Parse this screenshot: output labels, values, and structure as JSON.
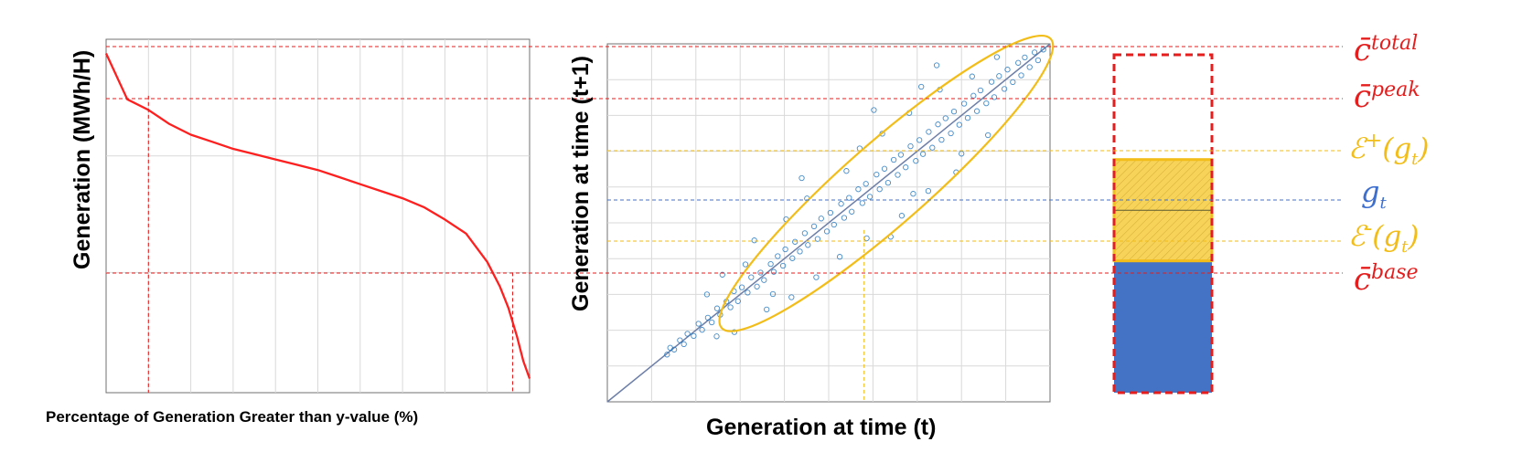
{
  "colors": {
    "curve": "#ff1f1f",
    "threshold": "#e51d1d",
    "generation": "#4472c4",
    "band": "#f2bd18",
    "scatter": "#1f74bd",
    "grid": "#d9d9d9",
    "axis": "#707070",
    "legend_generation": "#3e6fcf"
  },
  "panel_left": {
    "xlabel": "Percentage of Generation Greater than y-value (%)",
    "ylabel": "Generation (MWh/H)"
  },
  "panel_middle": {
    "xlabel": "Generation at time (t)",
    "ylabel": "Generation at time (t+1)"
  },
  "panel_right": {
    "labels": {
      "c_total": {
        "base": "c̄",
        "sup": "total"
      },
      "c_peak": {
        "base": "c̄",
        "sup": "peak"
      },
      "eps_plus": {
        "base": "ℰ",
        "sup": "+",
        "arg": "(g",
        "sub": "t",
        "close": ")"
      },
      "g_t": {
        "base": "g",
        "sub": "t"
      },
      "eps_minus": {
        "base": "ℰ",
        "sup": "-",
        "arg": "(g",
        "sub": "t",
        "close": ")"
      },
      "c_base": {
        "base": "c̄",
        "sup": "base"
      }
    }
  },
  "chart_data": [
    {
      "type": "line",
      "series": [
        {
          "x": [
            0,
            5,
            10,
            15,
            20,
            25,
            30,
            35,
            40,
            45,
            50,
            55,
            60,
            65,
            70,
            75,
            80,
            85,
            90,
            93,
            95,
            97,
            98.5,
            100
          ],
          "values": [
            96,
            83,
            80,
            76,
            73,
            71,
            69,
            67.5,
            66,
            64.5,
            63,
            61,
            59,
            57,
            55,
            52.5,
            49,
            45,
            37,
            30,
            24,
            16,
            9,
            4
          ]
        }
      ],
      "reference_lines": {
        "horizontal": [
          100,
          84,
          34
        ],
        "vertical": [
          10,
          96
        ]
      },
      "grid": true
    },
    {
      "type": "scatter",
      "points": [
        [
          13.5,
          13.2
        ],
        [
          14.2,
          15.1
        ],
        [
          15.1,
          14.6
        ],
        [
          16.4,
          17.2
        ],
        [
          17.3,
          16.1
        ],
        [
          18.1,
          19.0
        ],
        [
          19.5,
          18.4
        ],
        [
          20.6,
          21.8
        ],
        [
          21.4,
          20.1
        ],
        [
          22.7,
          23.5
        ],
        [
          23.6,
          22.2
        ],
        [
          24.8,
          26.1
        ],
        [
          25.5,
          24.3
        ],
        [
          26.9,
          28.0
        ],
        [
          27.8,
          26.4
        ],
        [
          28.6,
          30.9
        ],
        [
          29.5,
          28.1
        ],
        [
          30.4,
          32.0
        ],
        [
          31.7,
          30.5
        ],
        [
          32.5,
          34.8
        ],
        [
          33.8,
          32.2
        ],
        [
          34.6,
          36.1
        ],
        [
          35.4,
          34.0
        ],
        [
          36.9,
          38.5
        ],
        [
          37.6,
          36.3
        ],
        [
          38.5,
          40.7
        ],
        [
          39.7,
          38.0
        ],
        [
          40.2,
          42.6
        ],
        [
          41.8,
          40.1
        ],
        [
          42.4,
          44.7
        ],
        [
          43.5,
          42.0
        ],
        [
          44.6,
          47.1
        ],
        [
          45.3,
          43.8
        ],
        [
          46.7,
          49.0
        ],
        [
          47.5,
          45.5
        ],
        [
          48.3,
          51.2
        ],
        [
          49.6,
          47.6
        ],
        [
          50.4,
          52.8
        ],
        [
          51.2,
          49.5
        ],
        [
          52.8,
          55.3
        ],
        [
          53.5,
          51.4
        ],
        [
          54.6,
          57.0
        ],
        [
          55.2,
          53.1
        ],
        [
          56.7,
          59.4
        ],
        [
          57.6,
          55.5
        ],
        [
          58.4,
          60.9
        ],
        [
          59.3,
          57.3
        ],
        [
          60.8,
          63.5
        ],
        [
          61.5,
          59.4
        ],
        [
          62.6,
          65.1
        ],
        [
          63.4,
          61.2
        ],
        [
          64.7,
          67.6
        ],
        [
          65.6,
          63.4
        ],
        [
          66.3,
          69.0
        ],
        [
          67.4,
          65.5
        ],
        [
          68.5,
          71.4
        ],
        [
          69.7,
          67.3
        ],
        [
          70.5,
          73.1
        ],
        [
          71.3,
          69.2
        ],
        [
          72.6,
          75.4
        ],
        [
          73.4,
          71.0
        ],
        [
          74.7,
          77.5
        ],
        [
          75.5,
          73.2
        ],
        [
          76.4,
          79.2
        ],
        [
          77.6,
          75.0
        ],
        [
          78.3,
          81.1
        ],
        [
          79.5,
          77.4
        ],
        [
          80.6,
          83.3
        ],
        [
          81.4,
          79.3
        ],
        [
          82.7,
          85.5
        ],
        [
          83.5,
          81.2
        ],
        [
          84.3,
          87.0
        ],
        [
          85.6,
          83.4
        ],
        [
          86.8,
          89.4
        ],
        [
          87.4,
          85.1
        ],
        [
          88.5,
          91.0
        ],
        [
          89.7,
          87.4
        ],
        [
          90.4,
          92.8
        ],
        [
          91.6,
          89.3
        ],
        [
          92.8,
          94.7
        ],
        [
          93.5,
          91.2
        ],
        [
          94.3,
          96.2
        ],
        [
          95.4,
          93.5
        ],
        [
          96.5,
          97.6
        ],
        [
          97.3,
          95.4
        ],
        [
          98.5,
          98.4
        ],
        [
          22.5,
          30.0
        ],
        [
          31.2,
          38.4
        ],
        [
          28.7,
          19.5
        ],
        [
          36.0,
          25.8
        ],
        [
          40.4,
          51.0
        ],
        [
          45.1,
          56.8
        ],
        [
          47.2,
          34.8
        ],
        [
          54.0,
          64.5
        ],
        [
          58.6,
          45.7
        ],
        [
          62.1,
          74.9
        ],
        [
          66.5,
          52.0
        ],
        [
          68.2,
          80.7
        ],
        [
          72.5,
          58.9
        ],
        [
          75.1,
          87.2
        ],
        [
          78.8,
          64.1
        ],
        [
          82.4,
          90.9
        ],
        [
          41.6,
          29.2
        ],
        [
          52.5,
          40.5
        ],
        [
          60.2,
          81.5
        ],
        [
          69.1,
          58.1
        ],
        [
          74.4,
          94.0
        ],
        [
          80.0,
          69.3
        ],
        [
          88.0,
          96.3
        ],
        [
          33.2,
          45.1
        ],
        [
          26.0,
          35.5
        ],
        [
          43.9,
          62.5
        ],
        [
          57.0,
          70.8
        ],
        [
          64.0,
          46.1
        ],
        [
          70.9,
          88.0
        ],
        [
          86.0,
          74.5
        ],
        [
          24.7,
          18.3
        ],
        [
          37.4,
          30.1
        ]
      ],
      "ellipse": true,
      "diagonal": true,
      "reference_lines": {
        "horizontal": [
          100,
          85,
          75,
          54,
          48,
          35
        ],
        "vertical": [
          58
        ]
      },
      "grid": true
    },
    {
      "type": "bar",
      "segments": [
        {
          "name": "c̄total",
          "from": 69,
          "to": 100,
          "style": "dashed-outline"
        },
        {
          "name": "ℰ+(gt)",
          "from": 54,
          "to": 69,
          "style": "hatched-band"
        },
        {
          "name": "ℰ-(gt)",
          "from": 39,
          "to": 54,
          "style": "hatched-band"
        },
        {
          "name": "c̄base",
          "from": 0,
          "to": 39,
          "style": "solid-fill"
        }
      ],
      "reference_lines": {
        "horizontal": [
          100,
          84,
          69,
          54,
          39,
          35
        ]
      }
    }
  ]
}
